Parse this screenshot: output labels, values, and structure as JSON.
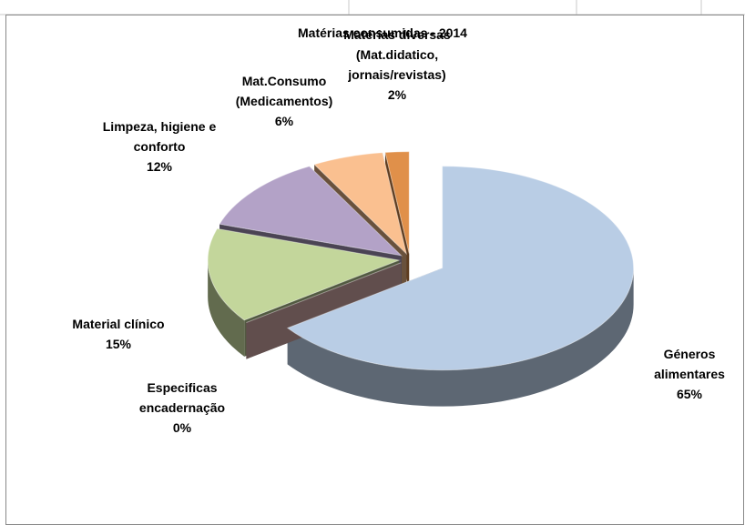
{
  "chart_data": {
    "type": "pie",
    "title": "Matérias consumidas - 2014",
    "categories": [
      "Géneros alimentares",
      "Especificas encadernação",
      "Material clínico",
      "Limpeza, higiene e conforto",
      "Mat.Consumo (Medicamentos)",
      "Matérias diversas (Mat.didatico, jornais/revistas)"
    ],
    "values": [
      65,
      0,
      15,
      12,
      6,
      2
    ],
    "value_labels": [
      "65%",
      "0%",
      "15%",
      "12%",
      "6%",
      "2%"
    ],
    "colors": [
      "#b9cde5",
      "#e6b9b8",
      "#c3d69b",
      "#b3a2c7",
      "#fac090",
      "#e0904a"
    ]
  }
}
